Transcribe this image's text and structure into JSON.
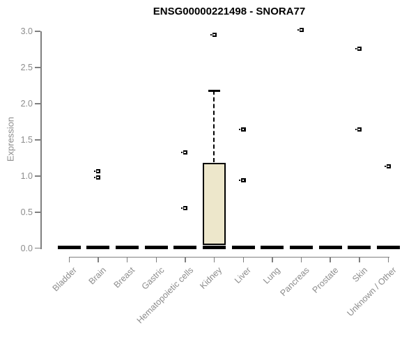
{
  "title": "ENSG00000221498 - SNORA77",
  "chart_data": {
    "type": "boxplot",
    "title": "ENSG00000221498 - SNORA77",
    "xlabel": "",
    "ylabel": "Expression",
    "ylim": [
      0.0,
      3.0
    ],
    "yticks": [
      0.0,
      0.5,
      1.0,
      1.5,
      2.0,
      2.5,
      3.0
    ],
    "grid": false,
    "legend": "none",
    "categories": [
      "Bladder",
      "Brain",
      "Breast",
      "Gastric",
      "Hematopoietic cells",
      "Kidney",
      "Liver",
      "Lung",
      "Pancreas",
      "Prostate",
      "Skin",
      "Unknown / Other"
    ],
    "boxes": [
      {
        "category": "Bladder",
        "median": 0,
        "q1": 0,
        "q3": 0,
        "whisker_low": 0,
        "whisker_high": 0,
        "outliers": []
      },
      {
        "category": "Brain",
        "median": 0,
        "q1": 0,
        "q3": 0,
        "whisker_low": 0,
        "whisker_high": 0,
        "outliers": [
          1.07,
          0.98
        ]
      },
      {
        "category": "Breast",
        "median": 0,
        "q1": 0,
        "q3": 0,
        "whisker_low": 0,
        "whisker_high": 0,
        "outliers": []
      },
      {
        "category": "Gastric",
        "median": 0,
        "q1": 0,
        "q3": 0,
        "whisker_low": 0,
        "whisker_high": 0,
        "outliers": []
      },
      {
        "category": "Hematopoietic cells",
        "median": 0,
        "q1": 0,
        "q3": 0,
        "whisker_low": 0,
        "whisker_high": 0,
        "outliers": [
          1.33,
          0.56
        ]
      },
      {
        "category": "Kidney",
        "median": 0.02,
        "q1": 0,
        "q3": 1.17,
        "whisker_low": 0,
        "whisker_high": 2.18,
        "outliers": [
          2.95
        ]
      },
      {
        "category": "Liver",
        "median": 0,
        "q1": 0,
        "q3": 0,
        "whisker_low": 0,
        "whisker_high": 0,
        "outliers": [
          1.64,
          0.94
        ]
      },
      {
        "category": "Lung",
        "median": 0,
        "q1": 0,
        "q3": 0,
        "whisker_low": 0,
        "whisker_high": 0,
        "outliers": []
      },
      {
        "category": "Pancreas",
        "median": 0,
        "q1": 0,
        "q3": 0,
        "whisker_low": 0,
        "whisker_high": 0,
        "outliers": [
          3.02
        ]
      },
      {
        "category": "Prostate",
        "median": 0,
        "q1": 0,
        "q3": 0,
        "whisker_low": 0,
        "whisker_high": 0,
        "outliers": []
      },
      {
        "category": "Skin",
        "median": 0,
        "q1": 0,
        "q3": 0,
        "whisker_low": 0,
        "whisker_high": 0,
        "outliers": [
          2.76,
          1.64
        ]
      },
      {
        "category": "Unknown / Other",
        "median": 0,
        "q1": 0,
        "q3": 0,
        "whisker_low": 0,
        "whisker_high": 0,
        "outliers": [
          1.13
        ]
      }
    ],
    "colors": {
      "box_fill": "#ede7cb",
      "box_border": "#000000",
      "collapsed_bar": "#000000",
      "axis_line": "#7f7f7f",
      "tick_label": "#8c8c8c",
      "title": "#000000",
      "background": "#ffffff"
    }
  }
}
